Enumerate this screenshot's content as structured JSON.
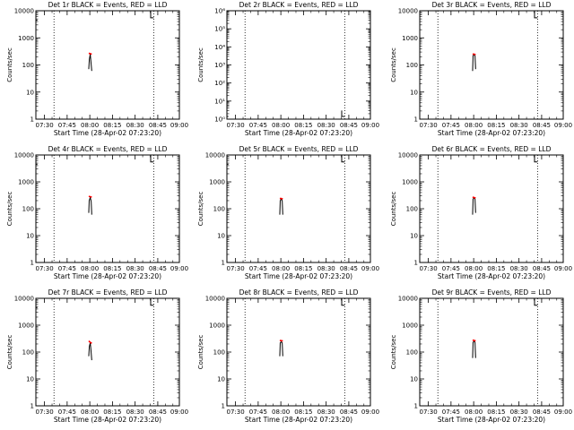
{
  "chart_data": [
    {
      "type": "line",
      "title": "Det 1r BLACK = Events, RED = LLD",
      "xlabel": "Start Time (28-Apr-02 07:23:20)",
      "ylabel": "Counts/sec",
      "ylog": true,
      "ylim": [
        1,
        10000
      ],
      "ytick_labels": [
        "1",
        "10",
        "100",
        "1000",
        "10000"
      ],
      "xticks": [
        "07:30",
        "07:45",
        "08:00",
        "08:15",
        "08:30",
        "08:45",
        "09:00"
      ],
      "xlim": [
        1,
        96
      ],
      "xtime_minutes": [
        6.67,
        21.67,
        36.67,
        51.67,
        66.67,
        81.67,
        96.67
      ],
      "vlines": [
        13,
        79
      ],
      "series": [
        {
          "name": "Events",
          "color": "#000000",
          "points": [
            [
              1,
              8000
            ],
            [
              1,
              4500
            ],
            [
              2,
              4500
            ]
          ],
          "burst": {
            "x": [
              36,
              36.4,
              37,
              37.4,
              38
            ],
            "y": [
              70,
              160,
              250,
              140,
              60
            ]
          }
        },
        {
          "name": "LLD",
          "color": "#ff0000",
          "burst": {
            "x": [
              36,
              37,
              38
            ],
            "y": [
              270,
              260,
              250
            ]
          }
        }
      ],
      "marker_right": {
        "x": [
          77,
          77,
          79
        ],
        "y": [
          9500,
          5500,
          5500
        ]
      }
    },
    {
      "type": "line",
      "title": "Det 2r BLACK = Events, RED = LLD",
      "xlabel": "Start Time (28-Apr-02 07:23:20)",
      "ylabel": "Counts/sec",
      "ylog": true,
      "ylim": [
        1,
        1000000
      ],
      "ytick_labels": [
        "10⁰",
        "10¹",
        "10²",
        "10³",
        "10⁴",
        "10⁵",
        "10⁶"
      ],
      "xticks": [
        "07:30",
        "07:45",
        "08:00",
        "08:15",
        "08:30",
        "08:45",
        "09:00"
      ],
      "xlim": [
        1,
        96
      ],
      "vlines": [
        13,
        79
      ],
      "series": [
        {
          "name": "Events",
          "color": "#000000",
          "points": [
            [
              1,
              3
            ],
            [
              1,
              1.4
            ],
            [
              2,
              1.4
            ]
          ]
        }
      ],
      "marker_right": {
        "x": [
          77,
          77,
          79
        ],
        "y": [
          3,
          1.4,
          1.4
        ]
      }
    },
    {
      "type": "line",
      "title": "Det 3r BLACK = Events, RED = LLD",
      "xlabel": "Start Time (28-Apr-02 07:23:20)",
      "ylabel": "Counts/sec",
      "ylog": true,
      "ylim": [
        1,
        10000
      ],
      "ytick_labels": [
        "1",
        "10",
        "100",
        "1000",
        "10000"
      ],
      "xticks": [
        "07:30",
        "07:45",
        "08:00",
        "08:15",
        "08:30",
        "08:45",
        "09:00"
      ],
      "xlim": [
        1,
        96
      ],
      "vlines": [
        13,
        79
      ],
      "series": [
        {
          "name": "Events",
          "color": "#000000",
          "burst": {
            "x": [
              36,
              36.3,
              37,
              37.6,
              38
            ],
            "y": [
              60,
              220,
              240,
              220,
              70
            ]
          }
        },
        {
          "name": "LLD",
          "color": "#ff0000",
          "burst": {
            "x": [
              36,
              37,
              38
            ],
            "y": [
              250,
              250,
              240
            ]
          }
        }
      ],
      "marker_right": {
        "x": [
          77,
          77,
          79
        ],
        "y": [
          9500,
          5500,
          5500
        ]
      }
    },
    {
      "type": "line",
      "title": "Det 4r BLACK = Events, RED = LLD",
      "xlabel": "Start Time (28-Apr-02 07:23:20)",
      "ylabel": "Counts/sec",
      "ylog": true,
      "ylim": [
        1,
        10000
      ],
      "ytick_labels": [
        "1",
        "10",
        "100",
        "1000",
        "10000"
      ],
      "xticks": [
        "07:30",
        "07:45",
        "08:00",
        "08:15",
        "08:30",
        "08:45",
        "09:00"
      ],
      "xlim": [
        1,
        96
      ],
      "vlines": [
        13,
        79
      ],
      "series": [
        {
          "name": "Events",
          "color": "#000000",
          "points": [
            [
              1,
              8000
            ],
            [
              1,
              4500
            ],
            [
              2,
              4500
            ]
          ],
          "burst": {
            "x": [
              36,
              36.3,
              37,
              37.6,
              38
            ],
            "y": [
              70,
              200,
              260,
              190,
              60
            ]
          }
        },
        {
          "name": "LLD",
          "color": "#ff0000",
          "burst": {
            "x": [
              36,
              37,
              38
            ],
            "y": [
              290,
              280,
              270
            ]
          }
        }
      ],
      "marker_right": {
        "x": [
          77,
          77,
          79
        ],
        "y": [
          9500,
          5500,
          5500
        ]
      }
    },
    {
      "type": "line",
      "title": "Det 5r BLACK = Events, RED = LLD",
      "xlabel": "Start Time (28-Apr-02 07:23:20)",
      "ylabel": "Counts/sec",
      "ylog": true,
      "ylim": [
        1,
        10000
      ],
      "ytick_labels": [
        "1",
        "10",
        "100",
        "1000",
        "10000"
      ],
      "xticks": [
        "07:30",
        "07:45",
        "08:00",
        "08:15",
        "08:30",
        "08:45",
        "09:00"
      ],
      "xlim": [
        1,
        96
      ],
      "vlines": [
        13,
        79
      ],
      "series": [
        {
          "name": "Events",
          "color": "#000000",
          "points": [
            [
              1,
              8000
            ],
            [
              1,
              4500
            ],
            [
              2,
              4500
            ]
          ],
          "burst": {
            "x": [
              36,
              36.3,
              37,
              37.6,
              38
            ],
            "y": [
              60,
              200,
              230,
              200,
              60
            ]
          }
        },
        {
          "name": "LLD",
          "color": "#ff0000",
          "burst": {
            "x": [
              36,
              37,
              38
            ],
            "y": [
              240,
              240,
              230
            ]
          }
        }
      ],
      "marker_right": {
        "x": [
          77,
          77,
          79
        ],
        "y": [
          9500,
          5500,
          5500
        ]
      }
    },
    {
      "type": "line",
      "title": "Det 6r BLACK = Events, RED = LLD",
      "xlabel": "Start Time (28-Apr-02 07:23:20)",
      "ylabel": "Counts/sec",
      "ylog": true,
      "ylim": [
        1,
        10000
      ],
      "ytick_labels": [
        "1",
        "10",
        "100",
        "1000",
        "10000"
      ],
      "xticks": [
        "07:30",
        "07:45",
        "08:00",
        "08:15",
        "08:30",
        "08:45",
        "09:00"
      ],
      "xlim": [
        1,
        96
      ],
      "vlines": [
        13,
        79
      ],
      "series": [
        {
          "name": "Events",
          "color": "#000000",
          "burst": {
            "x": [
              36,
              36.3,
              37,
              37.6,
              38
            ],
            "y": [
              60,
              230,
              250,
              230,
              70
            ]
          }
        },
        {
          "name": "LLD",
          "color": "#ff0000",
          "burst": {
            "x": [
              36,
              37,
              38
            ],
            "y": [
              270,
              260,
              250
            ]
          }
        }
      ],
      "marker_right": {
        "x": [
          77,
          77,
          79
        ],
        "y": [
          9500,
          5500,
          5500
        ]
      }
    },
    {
      "type": "line",
      "title": "Det 7r BLACK = Events, RED = LLD",
      "xlabel": "Start Time (28-Apr-02 07:23:20)",
      "ylabel": "Counts/sec",
      "ylog": true,
      "ylim": [
        1,
        10000
      ],
      "ytick_labels": [
        "1",
        "10",
        "100",
        "1000",
        "10000"
      ],
      "xticks": [
        "07:30",
        "07:45",
        "08:00",
        "08:15",
        "08:30",
        "08:45",
        "09:00"
      ],
      "xlim": [
        1,
        96
      ],
      "vlines": [
        13,
        79
      ],
      "series": [
        {
          "name": "Events",
          "color": "#000000",
          "points": [
            [
              1,
              8000
            ],
            [
              1,
              4500
            ],
            [
              2,
              4500
            ]
          ],
          "burst": {
            "x": [
              36,
              36.4,
              37,
              37.4,
              38
            ],
            "y": [
              70,
              160,
              220,
              130,
              50
            ]
          }
        },
        {
          "name": "LLD",
          "color": "#ff0000",
          "burst": {
            "x": [
              36,
              37,
              38
            ],
            "y": [
              260,
              230,
              210
            ]
          }
        }
      ],
      "marker_right": {
        "x": [
          77,
          77,
          79
        ],
        "y": [
          9500,
          5500,
          5500
        ]
      }
    },
    {
      "type": "line",
      "title": "Det 8r BLACK = Events, RED = LLD",
      "xlabel": "Start Time (28-Apr-02 07:23:20)",
      "ylabel": "Counts/sec",
      "ylog": true,
      "ylim": [
        1,
        10000
      ],
      "ytick_labels": [
        "1",
        "10",
        "100",
        "1000",
        "10000"
      ],
      "xticks": [
        "07:30",
        "07:45",
        "08:00",
        "08:15",
        "08:30",
        "08:45",
        "09:00"
      ],
      "xlim": [
        1,
        96
      ],
      "vlines": [
        13,
        79
      ],
      "series": [
        {
          "name": "Events",
          "color": "#000000",
          "burst": {
            "x": [
              36,
              36.3,
              37,
              37.6,
              38
            ],
            "y": [
              70,
              220,
              240,
              220,
              70
            ]
          }
        },
        {
          "name": "LLD",
          "color": "#ff0000",
          "burst": {
            "x": [
              36,
              37,
              38
            ],
            "y": [
              270,
              265,
              260
            ]
          }
        }
      ],
      "marker_right": {
        "x": [
          77,
          77,
          79
        ],
        "y": [
          9500,
          5500,
          5500
        ]
      }
    },
    {
      "type": "line",
      "title": "Det 9r BLACK = Events, RED = LLD",
      "xlabel": "Start Time (28-Apr-02 07:23:20)",
      "ylabel": "Counts/sec",
      "ylog": true,
      "ylim": [
        1,
        10000
      ],
      "ytick_labels": [
        "1",
        "10",
        "100",
        "1000",
        "10000"
      ],
      "xticks": [
        "07:30",
        "07:45",
        "08:00",
        "08:15",
        "08:30",
        "08:45",
        "09:00"
      ],
      "xlim": [
        1,
        96
      ],
      "vlines": [
        13,
        79
      ],
      "series": [
        {
          "name": "Events",
          "color": "#000000",
          "burst": {
            "x": [
              36,
              36.3,
              37,
              37.6,
              38
            ],
            "y": [
              60,
              230,
              250,
              230,
              60
            ]
          }
        },
        {
          "name": "LLD",
          "color": "#ff0000",
          "burst": {
            "x": [
              36,
              37,
              38
            ],
            "y": [
              280,
              270,
              260
            ]
          }
        }
      ],
      "marker_right": {
        "x": [
          77,
          77,
          79
        ],
        "y": [
          9500,
          5500,
          5500
        ]
      }
    }
  ]
}
